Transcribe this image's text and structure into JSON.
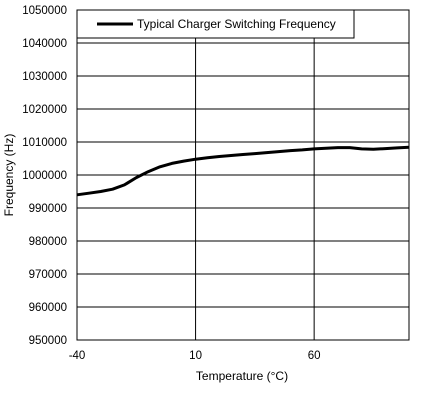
{
  "chart_data": {
    "type": "line",
    "title": "",
    "xlabel": "Temperature (°C)",
    "ylabel": "Frequency (Hz)",
    "xlim": [
      -40,
      100
    ],
    "ylim": [
      950000,
      1050000
    ],
    "x_ticks": [
      -40,
      10,
      60
    ],
    "x_tick_labels": [
      "-40",
      "10",
      "60"
    ],
    "y_ticks": [
      950000,
      960000,
      970000,
      980000,
      990000,
      1000000,
      1010000,
      1020000,
      1030000,
      1040000,
      1050000
    ],
    "y_tick_labels": [
      "950000",
      "960000",
      "970000",
      "980000",
      "990000",
      "1000000",
      "1010000",
      "1020000",
      "1030000",
      "1040000",
      "1050000"
    ],
    "grid": true,
    "legend_position": "top-left",
    "line_color": "#000000",
    "series": [
      {
        "name": "Typical Charger Switching Frequency",
        "x": [
          -40,
          -35,
          -30,
          -25,
          -20,
          -15,
          -10,
          -5,
          0,
          5,
          10,
          15,
          20,
          25,
          30,
          35,
          40,
          45,
          50,
          55,
          60,
          65,
          70,
          75,
          80,
          85,
          90,
          95,
          100
        ],
        "y": [
          994000,
          994500,
          995000,
          995700,
          997000,
          999200,
          1001000,
          1002500,
          1003500,
          1004200,
          1004800,
          1005200,
          1005600,
          1005900,
          1006200,
          1006500,
          1006800,
          1007100,
          1007400,
          1007600,
          1007900,
          1008100,
          1008300,
          1008300,
          1007900,
          1007800,
          1008000,
          1008200,
          1008400
        ]
      }
    ]
  }
}
